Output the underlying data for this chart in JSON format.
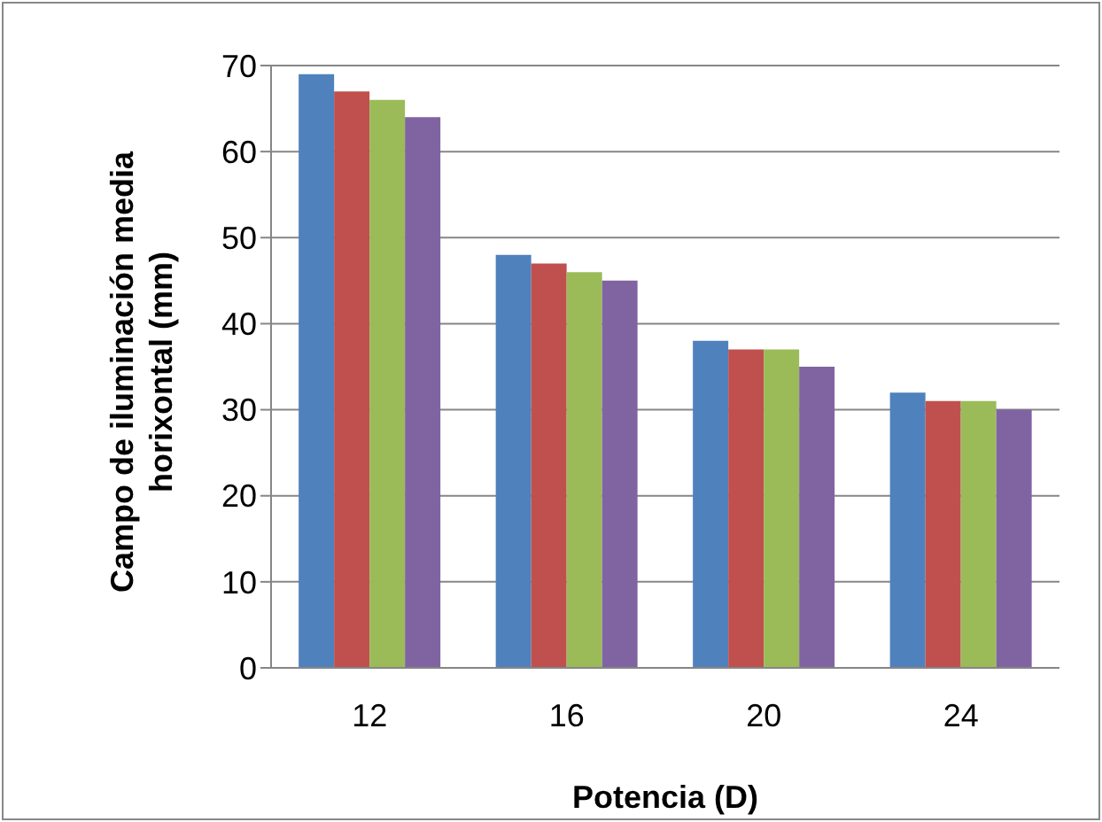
{
  "chart_data": {
    "type": "bar",
    "xlabel": "Potencia (D)",
    "ylabel": "Campo de iluminación media horixontal (mm)",
    "categories": [
      "12",
      "16",
      "20",
      "24"
    ],
    "series": [
      {
        "color": "#4f81bd",
        "values": [
          69,
          48,
          38,
          32
        ]
      },
      {
        "color": "#c0504d",
        "values": [
          67,
          47,
          37,
          31
        ]
      },
      {
        "color": "#9bbb59",
        "values": [
          66,
          46,
          37,
          31
        ]
      },
      {
        "color": "#8064a2",
        "values": [
          64,
          45,
          35,
          30
        ]
      }
    ],
    "ylim": [
      0,
      70
    ],
    "yticks": [
      0,
      10,
      20,
      30,
      40,
      50,
      60,
      70
    ],
    "grid": "y",
    "legend": false
  }
}
